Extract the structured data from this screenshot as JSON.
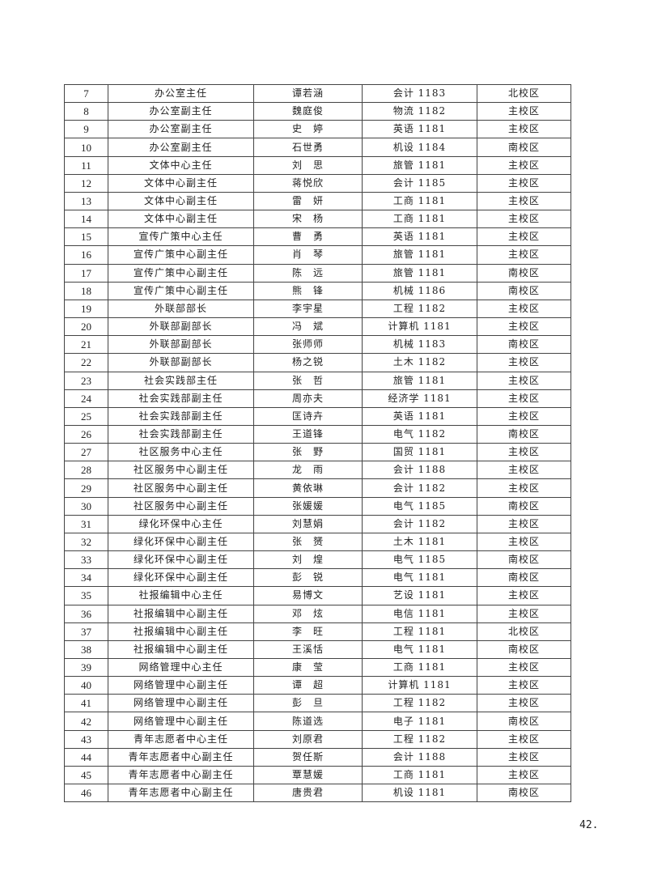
{
  "rows": [
    [
      "7",
      "办公室主任",
      "谭若涵",
      "会计 1183",
      "北校区"
    ],
    [
      "8",
      "办公室副主任",
      "魏庭俊",
      "物流 1182",
      "主校区"
    ],
    [
      "9",
      "办公室副主任",
      "史　婷",
      "英语 1181",
      "主校区"
    ],
    [
      "10",
      "办公室副主任",
      "石世勇",
      "机设 1184",
      "南校区"
    ],
    [
      "11",
      "文体中心主任",
      "刘　思",
      "旅管 1181",
      "主校区"
    ],
    [
      "12",
      "文体中心副主任",
      "蒋悦欣",
      "会计 1185",
      "主校区"
    ],
    [
      "13",
      "文体中心副主任",
      "雷　妍",
      "工商 1181",
      "主校区"
    ],
    [
      "14",
      "文体中心副主任",
      "宋　杨",
      "工商 1181",
      "主校区"
    ],
    [
      "15",
      "宣传广策中心主任",
      "曹　勇",
      "英语 1181",
      "主校区"
    ],
    [
      "16",
      "宣传广策中心副主任",
      "肖　琴",
      "旅管 1181",
      "主校区"
    ],
    [
      "17",
      "宣传广策中心副主任",
      "陈　远",
      "旅管 1181",
      "南校区"
    ],
    [
      "18",
      "宣传广策中心副主任",
      "熊　锋",
      "机械 1186",
      "南校区"
    ],
    [
      "19",
      "外联部部长",
      "李宇星",
      "工程 1182",
      "主校区"
    ],
    [
      "20",
      "外联部副部长",
      "冯　斌",
      "计算机 1181",
      "主校区"
    ],
    [
      "21",
      "外联部副部长",
      "张师师",
      "机械 1183",
      "南校区"
    ],
    [
      "22",
      "外联部副部长",
      "杨之锐",
      "土木 1182",
      "主校区"
    ],
    [
      "23",
      "社会实践部主任",
      "张　哲",
      "旅管 1181",
      "主校区"
    ],
    [
      "24",
      "社会实践部副主任",
      "周亦夫",
      "经济学 1181",
      "主校区"
    ],
    [
      "25",
      "社会实践部副主任",
      "匡诗卉",
      "英语 1181",
      "主校区"
    ],
    [
      "26",
      "社会实践部副主任",
      "王道锋",
      "电气 1182",
      "南校区"
    ],
    [
      "27",
      "社区服务中心主任",
      "张　野",
      "国贸 1181",
      "主校区"
    ],
    [
      "28",
      "社区服务中心副主任",
      "龙　雨",
      "会计 1188",
      "主校区"
    ],
    [
      "29",
      "社区服务中心副主任",
      "黄依琳",
      "会计 1182",
      "主校区"
    ],
    [
      "30",
      "社区服务中心副主任",
      "张媛媛",
      "电气 1185",
      "南校区"
    ],
    [
      "31",
      "绿化环保中心主任",
      "刘慧娟",
      "会计 1182",
      "主校区"
    ],
    [
      "32",
      "绿化环保中心副主任",
      "张　赟",
      "土木 1181",
      "主校区"
    ],
    [
      "33",
      "绿化环保中心副主任",
      "刘　煌",
      "电气 1185",
      "南校区"
    ],
    [
      "34",
      "绿化环保中心副主任",
      "彭　锐",
      "电气 1181",
      "南校区"
    ],
    [
      "35",
      "社报编辑中心主任",
      "易博文",
      "艺设 1181",
      "主校区"
    ],
    [
      "36",
      "社报编辑中心副主任",
      "邓　炫",
      "电信 1181",
      "主校区"
    ],
    [
      "37",
      "社报编辑中心副主任",
      "李　旺",
      "工程 1181",
      "北校区"
    ],
    [
      "38",
      "社报编辑中心副主任",
      "王溪恬",
      "电气 1181",
      "南校区"
    ],
    [
      "39",
      "网络管理中心主任",
      "康　莹",
      "工商 1181",
      "主校区"
    ],
    [
      "40",
      "网络管理中心副主任",
      "谭　超",
      "计算机 1181",
      "主校区"
    ],
    [
      "41",
      "网络管理中心副主任",
      "彭　旦",
      "工程 1182",
      "主校区"
    ],
    [
      "42",
      "网络管理中心副主任",
      "陈道选",
      "电子 1181",
      "南校区"
    ],
    [
      "43",
      "青年志愿者中心主任",
      "刘原君",
      "工程 1182",
      "主校区"
    ],
    [
      "44",
      "青年志愿者中心副主任",
      "贺任斯",
      "会计 1188",
      "主校区"
    ],
    [
      "45",
      "青年志愿者中心副主任",
      "覃慧媛",
      "工商 1181",
      "主校区"
    ],
    [
      "46",
      "青年志愿者中心副主任",
      "唐贵君",
      "机设 1181",
      "南校区"
    ]
  ],
  "page_number": "42."
}
